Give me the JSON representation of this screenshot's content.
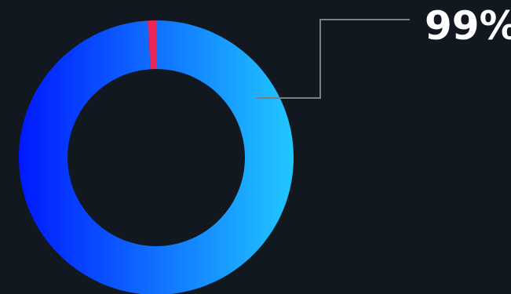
{
  "chart_data": {
    "type": "pie",
    "style": "donut",
    "slices": [
      {
        "value": 99,
        "color": "gradient-blue"
      },
      {
        "value": 1,
        "color": "#e8265a"
      }
    ],
    "annotation": "99%",
    "colors": {
      "background": "#111820",
      "gradient_start": "#0019ff",
      "gradient_end": "#20c8ff",
      "minor_slice": "#e8265a",
      "leader_line": "#7a7f85",
      "label": "#ffffff"
    }
  }
}
